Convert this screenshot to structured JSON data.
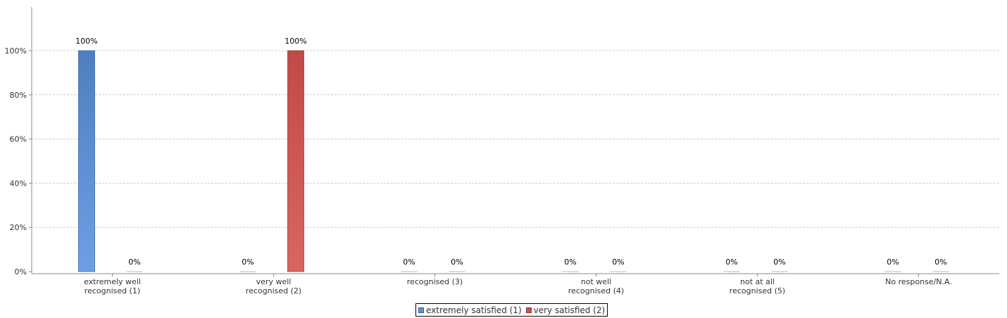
{
  "chart_data": {
    "type": "bar",
    "categories": [
      [
        "extremely well",
        "recognised (1)"
      ],
      [
        "very well",
        "recognised (2)"
      ],
      [
        "recognised (3)"
      ],
      [
        "not well",
        "recognised (4)"
      ],
      [
        "not at all",
        "recognised (5)"
      ],
      [
        "No response/N.A."
      ]
    ],
    "series": [
      {
        "name": "extremely satisfied (1)",
        "color": "#5b8fd6",
        "values": [
          100,
          0,
          0,
          0,
          0,
          0
        ]
      },
      {
        "name": "very satisfied (2)",
        "color": "#cc5450",
        "values": [
          0,
          100,
          0,
          0,
          0,
          0
        ]
      }
    ],
    "data_labels": [
      [
        "100%",
        "0%",
        "0%",
        "0%",
        "0%",
        "0%"
      ],
      [
        "0%",
        "100%",
        "0%",
        "0%",
        "0%",
        "0%"
      ]
    ],
    "yticks": [
      0,
      20,
      40,
      60,
      80,
      100
    ],
    "ytick_labels": [
      "0%",
      "20%",
      "40%",
      "60%",
      "80%",
      "100%"
    ],
    "ylim": [
      0,
      100
    ],
    "grid": true,
    "legend_position": "bottom-center"
  },
  "legend": {
    "items": [
      {
        "label": "extremely satisfied (1)",
        "color": "#5b8fd6"
      },
      {
        "label": "very satisfied (2)",
        "color": "#cc5450"
      }
    ]
  }
}
